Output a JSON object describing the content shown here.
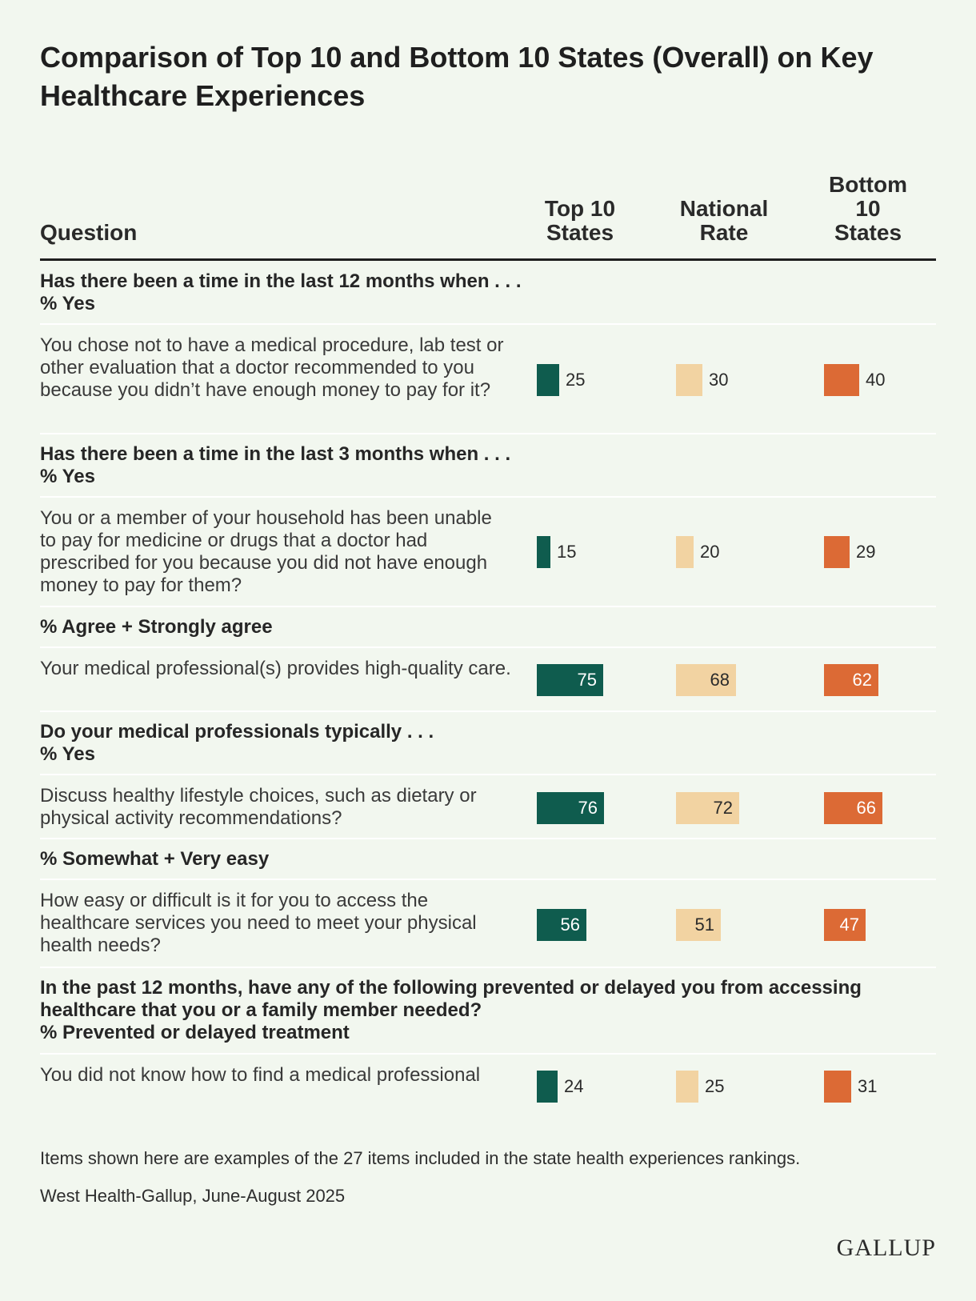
{
  "title": "Comparison of Top 10 and Bottom 10 States (Overall) on Key Healthcare Experiences",
  "columns": {
    "question": "Question",
    "top": [
      "Top 10",
      "States"
    ],
    "national": [
      "National",
      "Rate"
    ],
    "bottom": [
      "Bottom",
      "10",
      "States"
    ]
  },
  "colors": {
    "top": "#0f5c4e",
    "national": "#f2d3a2",
    "bottom": "#dc6a35"
  },
  "sections": [
    {
      "heading": [
        "Has there been a time in the last 12 months when . . .",
        "% Yes"
      ],
      "rows": [
        {
          "question": "You chose not to have a medical procedure, lab test or other evaluation that a doctor recommended to you because you didn’t have enough money to pay for it?",
          "top": 25,
          "national": 30,
          "bottom": 40
        }
      ]
    },
    {
      "heading": [
        "Has there been a time in the last 3 months when . . .",
        "% Yes"
      ],
      "rows": [
        {
          "question": "You or a member of your household has been unable to pay for medicine or drugs that a doctor had prescribed for you because you did not have enough money to pay for them?",
          "top": 15,
          "national": 20,
          "bottom": 29
        }
      ]
    },
    {
      "heading": [
        "% Agree + Strongly agree"
      ],
      "rows": [
        {
          "question": "Your medical professional(s) provides high-quality care.",
          "top": 75,
          "national": 68,
          "bottom": 62
        }
      ]
    },
    {
      "heading": [
        "Do your medical professionals typically . . .",
        "% Yes"
      ],
      "rows": [
        {
          "question": "Discuss healthy lifestyle choices, such as dietary or physical activity recommendations?",
          "top": 76,
          "national": 72,
          "bottom": 66
        }
      ]
    },
    {
      "heading": [
        "% Somewhat + Very easy"
      ],
      "rows": [
        {
          "question": "How easy or difficult is it for you to access the healthcare services you need to meet your physical health needs?",
          "top": 56,
          "national": 51,
          "bottom": 47
        }
      ]
    },
    {
      "heading": [
        "In the past 12 months, have any of the following prevented or delayed you from accessing healthcare that you or a family member needed?",
        "% Prevented or delayed treatment"
      ],
      "rows": [
        {
          "question": "You did not know how to find a medical professional",
          "top": 24,
          "national": 25,
          "bottom": 31
        }
      ]
    }
  ],
  "chart_data": {
    "type": "bar",
    "title": "Comparison of Top 10 and Bottom 10 States (Overall) on Key Healthcare Experiences",
    "categories": [
      "You chose not to have a medical procedure, lab test or other evaluation that a doctor recommended to you because you didn’t have enough money to pay for it?",
      "You or a member of your household has been unable to pay for medicine or drugs that a doctor had prescribed for you because you did not have enough money to pay for them?",
      "Your medical professional(s) provides high-quality care.",
      "Discuss healthy lifestyle choices, such as dietary or physical activity recommendations?",
      "How easy or difficult is it for you to access the healthcare services you need to meet your physical health needs?",
      "You did not know how to find a medical professional"
    ],
    "series": [
      {
        "name": "Top 10 States",
        "values": [
          25,
          15,
          75,
          76,
          56,
          24
        ]
      },
      {
        "name": "National Rate",
        "values": [
          30,
          20,
          68,
          72,
          51,
          25
        ]
      },
      {
        "name": "Bottom 10 States",
        "values": [
          40,
          29,
          62,
          66,
          47,
          31
        ]
      }
    ],
    "xlabel": "",
    "ylabel": "%",
    "ylim": [
      0,
      100
    ]
  },
  "footnote": "Items shown here are examples of the 27 items included in the state health experiences rankings.",
  "source": "West Health-Gallup, June-August 2025",
  "logo": "GALLUP"
}
